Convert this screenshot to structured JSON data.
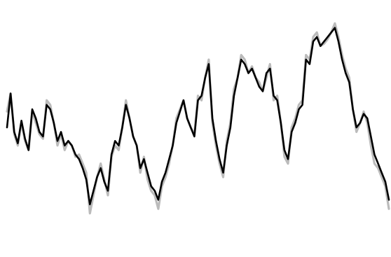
{
  "chart_data": {
    "type": "line",
    "title": "",
    "xlabel": "",
    "ylabel": "",
    "grid": false,
    "xlim": [
      0,
      106
    ],
    "ylim": [
      0,
      100
    ],
    "series": [
      {
        "color": "#bbbbbb",
        "values": [
          55,
          63,
          45,
          40,
          50,
          42,
          38,
          55,
          50,
          45,
          43,
          60,
          58,
          50,
          40,
          45,
          38,
          42,
          40,
          35,
          36,
          32,
          28,
          10,
          18,
          26,
          32,
          25,
          18,
          35,
          40,
          38,
          48,
          60,
          52,
          44,
          40,
          28,
          35,
          25,
          20,
          18,
          12,
          22,
          26,
          32,
          40,
          52,
          56,
          60,
          52,
          48,
          45,
          62,
          60,
          70,
          78,
          50,
          40,
          32,
          26,
          42,
          50,
          65,
          70,
          80,
          78,
          72,
          75,
          70,
          68,
          64,
          70,
          76,
          60,
          62,
          50,
          35,
          32,
          48,
          52,
          58,
          60,
          80,
          78,
          88,
          90,
          84,
          85,
          87,
          90,
          94,
          88,
          80,
          74,
          70,
          56,
          46,
          50,
          55,
          50,
          40,
          32,
          30,
          26,
          22,
          12
        ]
      },
      {
        "color": "#000000",
        "values": [
          48,
          63,
          46,
          41,
          51,
          43,
          38,
          56,
          52,
          46,
          44,
          58,
          56,
          50,
          42,
          46,
          40,
          42,
          40,
          36,
          34,
          30,
          25,
          14,
          20,
          26,
          30,
          24,
          20,
          36,
          42,
          40,
          48,
          58,
          52,
          44,
          40,
          30,
          34,
          28,
          22,
          20,
          16,
          24,
          28,
          34,
          40,
          50,
          55,
          60,
          52,
          48,
          44,
          60,
          62,
          70,
          76,
          52,
          42,
          34,
          28,
          40,
          48,
          62,
          70,
          78,
          76,
          72,
          74,
          70,
          66,
          64,
          72,
          74,
          62,
          60,
          50,
          38,
          34,
          46,
          50,
          56,
          58,
          78,
          76,
          86,
          88,
          84,
          86,
          88,
          90,
          92,
          86,
          78,
          72,
          68,
          56,
          48,
          50,
          54,
          52,
          44,
          36,
          32,
          28,
          24,
          16
        ]
      }
    ]
  }
}
